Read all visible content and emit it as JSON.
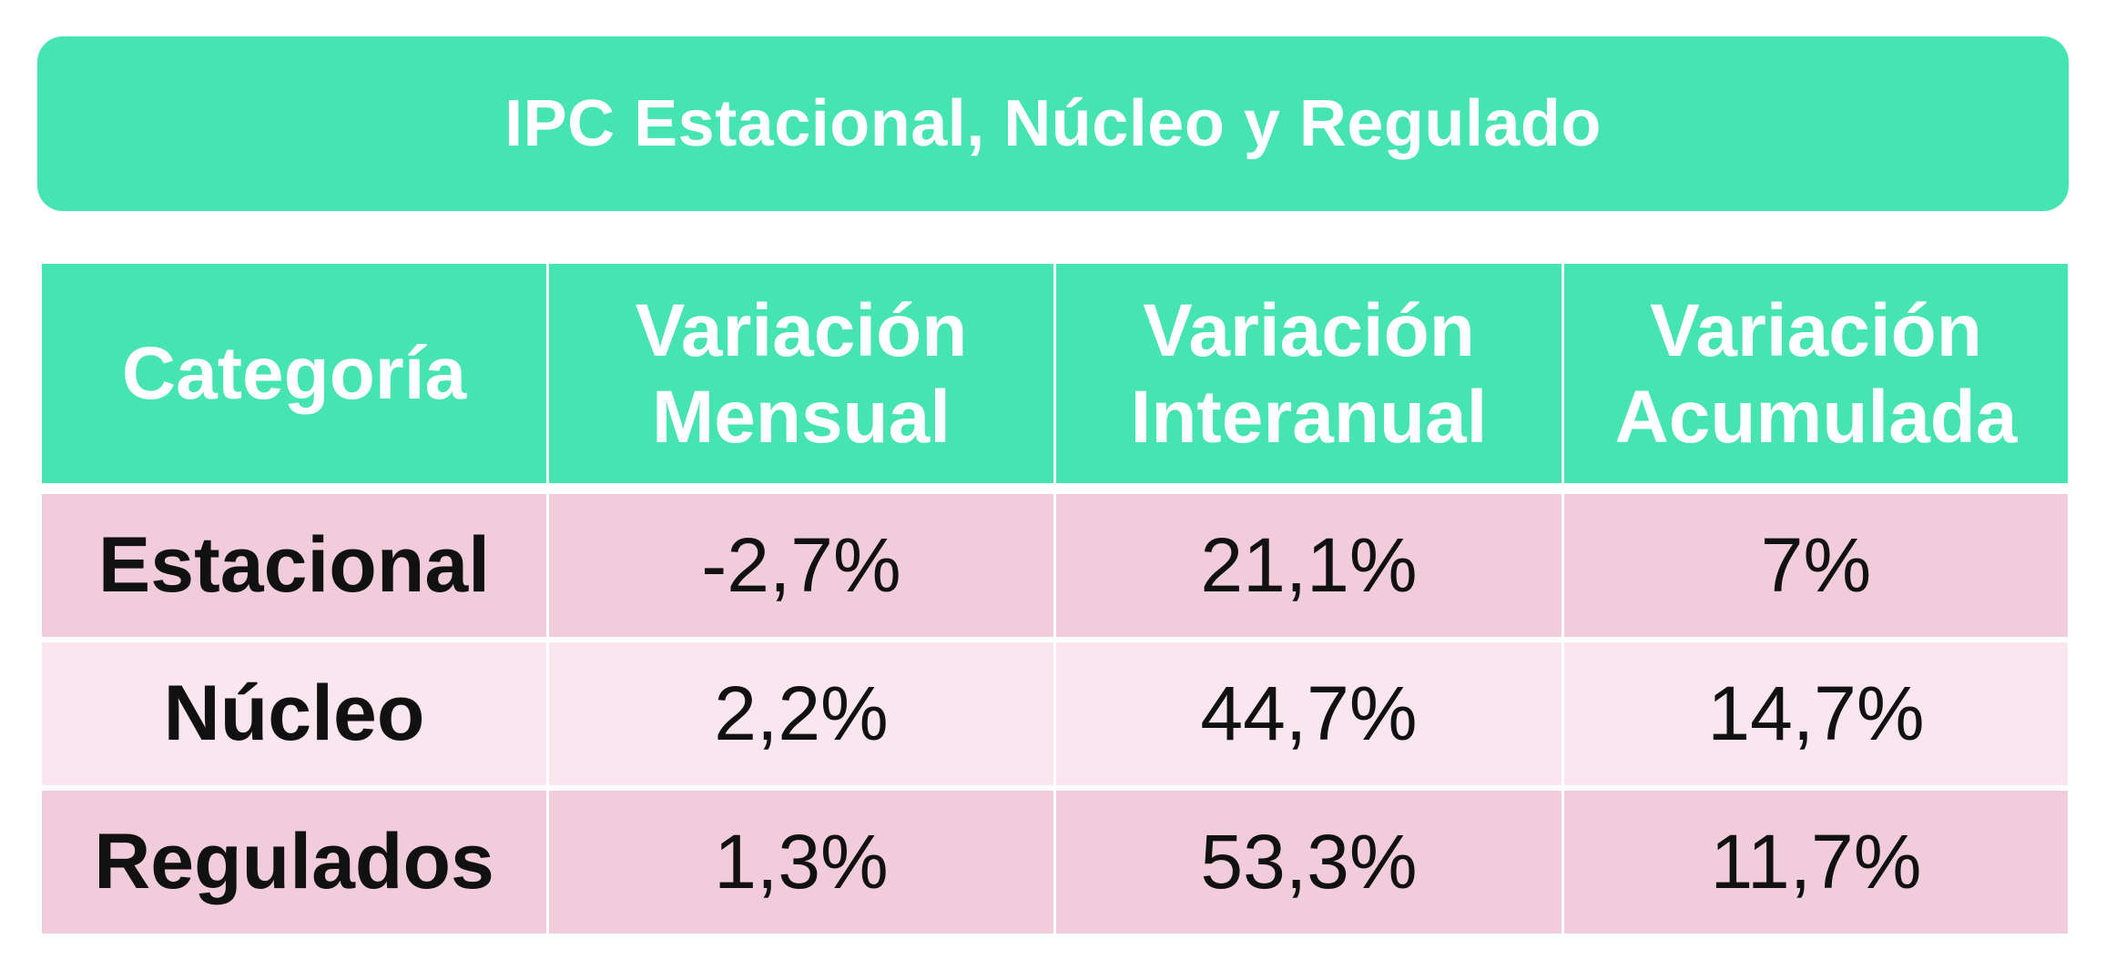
{
  "colors": {
    "header_bg": "#45E4B1",
    "row_dark_bg": "#F1CCDB",
    "row_light_bg": "#FAE6EE",
    "header_text": "#FFFFFF",
    "body_text": "#111111"
  },
  "title": "IPC Estacional, Núcleo y Regulado",
  "table": {
    "headers": [
      {
        "line1": "Categoría",
        "line2": ""
      },
      {
        "line1": "Variación",
        "line2": "Mensual"
      },
      {
        "line1": "Variación",
        "line2": "Interanual"
      },
      {
        "line1": "Variación",
        "line2": "Acumulada"
      }
    ],
    "rows": [
      {
        "category": "Estacional",
        "mensual": "-2,7%",
        "interanual": "21,1%",
        "acumulada": "7%"
      },
      {
        "category": "Núcleo",
        "mensual": "2,2%",
        "interanual": "44,7%",
        "acumulada": "14,7%"
      },
      {
        "category": "Regulados",
        "mensual": "1,3%",
        "interanual": "53,3%",
        "acumulada": "11,7%"
      }
    ]
  },
  "chart_data": {
    "type": "table",
    "title": "IPC Estacional, Núcleo y Regulado",
    "columns": [
      "Categoría",
      "Variación Mensual",
      "Variación Interanual",
      "Variación Acumulada"
    ],
    "rows": [
      [
        "Estacional",
        "-2,7%",
        "21,1%",
        "7%"
      ],
      [
        "Núcleo",
        "2,2%",
        "44,7%",
        "14,7%"
      ],
      [
        "Regulados",
        "1,3%",
        "53,3%",
        "11,7%"
      ]
    ]
  }
}
